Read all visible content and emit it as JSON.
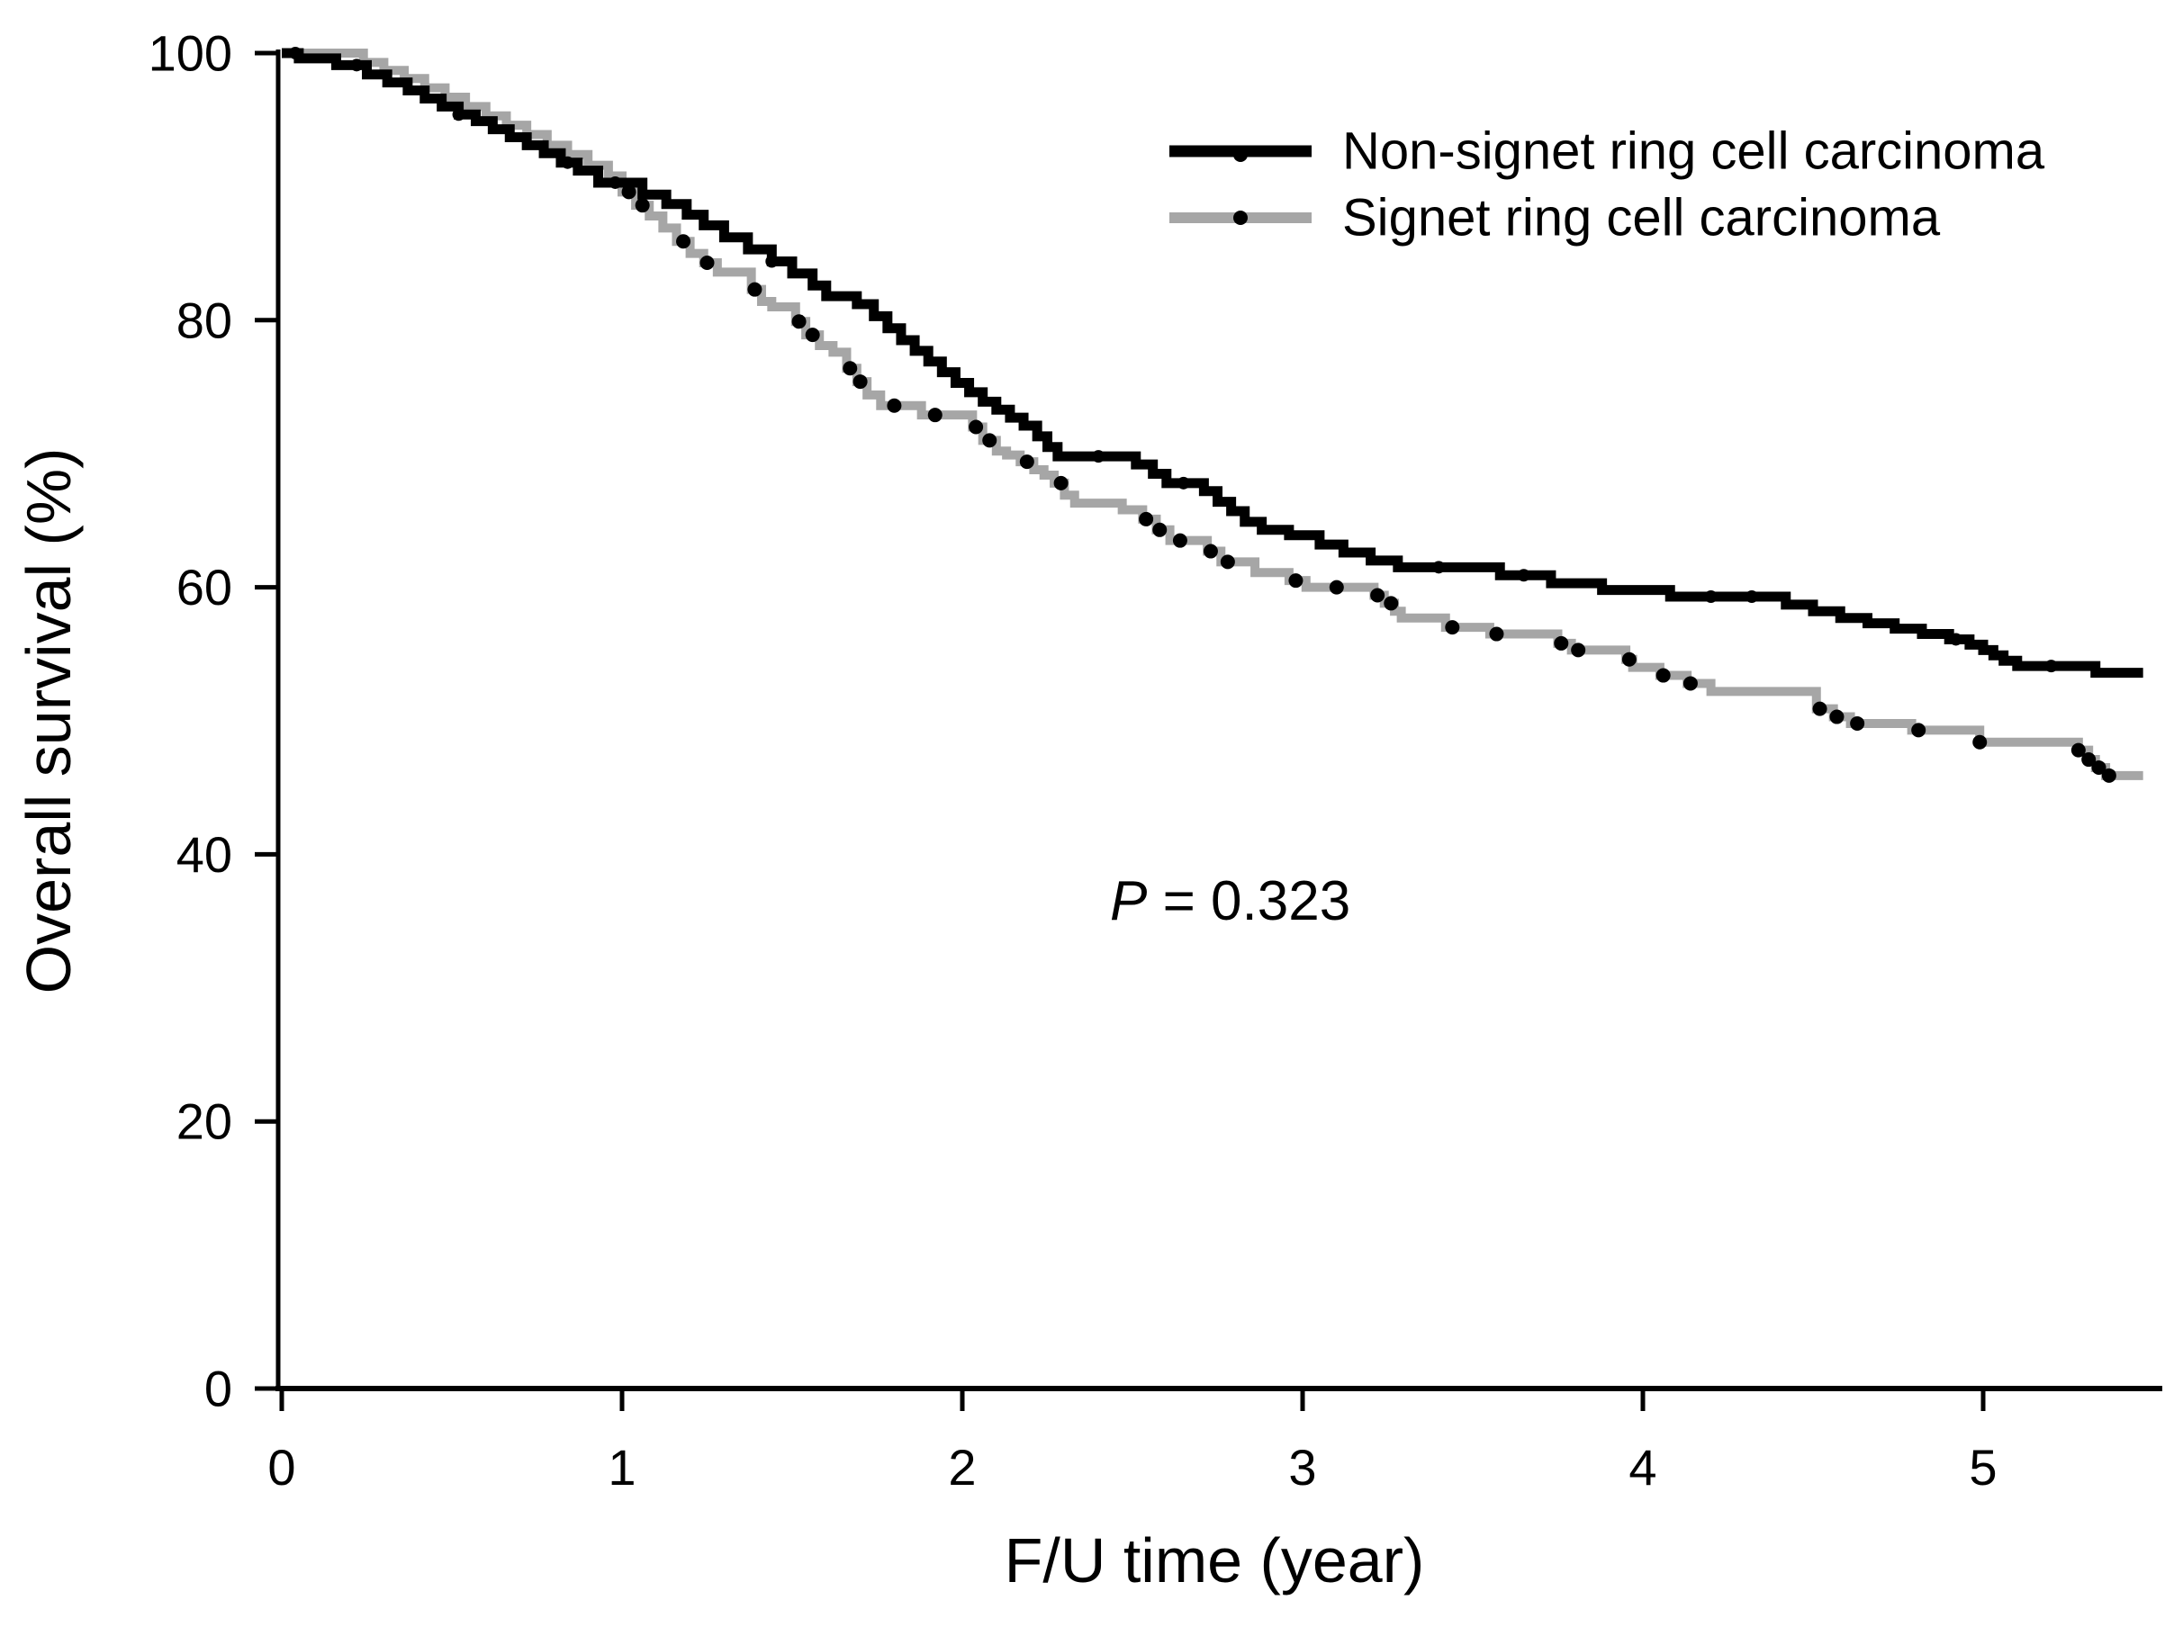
{
  "figure": {
    "background_color": "#ffffff",
    "axis_color": "#000000"
  },
  "chart_data": {
    "type": "line",
    "subtype": "kaplan-meier-step",
    "title": "",
    "xlabel": "F/U time (year)",
    "ylabel": "Overall survival (%)",
    "xlim": [
      0,
      5.5
    ],
    "ylim": [
      0,
      100
    ],
    "x_ticks": [
      0,
      1,
      2,
      3,
      4,
      5
    ],
    "y_ticks": [
      0,
      20,
      40,
      60,
      80,
      100
    ],
    "grid": false,
    "legend_position": "top-right-inside",
    "annotation": {
      "prefix_italic": "P",
      "rest": " = 0.323"
    },
    "series": [
      {
        "name": "Non-signet ring cell carcinoma",
        "color": "#000000",
        "line_width": 11,
        "censor_radius": 7,
        "censor_color": "#000000",
        "points": [
          [
            0,
            100
          ],
          [
            0.05,
            99.6
          ],
          [
            0.16,
            99.1
          ],
          [
            0.25,
            98.4
          ],
          [
            0.31,
            97.8
          ],
          [
            0.37,
            97.2
          ],
          [
            0.42,
            96.6
          ],
          [
            0.47,
            96.0
          ],
          [
            0.52,
            95.4
          ],
          [
            0.57,
            94.9
          ],
          [
            0.62,
            94.3
          ],
          [
            0.67,
            93.7
          ],
          [
            0.72,
            93.1
          ],
          [
            0.77,
            92.5
          ],
          [
            0.82,
            91.8
          ],
          [
            0.87,
            91.2
          ],
          [
            0.93,
            90.3
          ],
          [
            1.06,
            89.4
          ],
          [
            1.13,
            88.7
          ],
          [
            1.19,
            87.9
          ],
          [
            1.24,
            87.1
          ],
          [
            1.3,
            86.2
          ],
          [
            1.37,
            85.3
          ],
          [
            1.44,
            84.4
          ],
          [
            1.5,
            83.5
          ],
          [
            1.56,
            82.6
          ],
          [
            1.6,
            81.8
          ],
          [
            1.69,
            81.2
          ],
          [
            1.74,
            80.3
          ],
          [
            1.78,
            79.4
          ],
          [
            1.82,
            78.5
          ],
          [
            1.86,
            77.7
          ],
          [
            1.9,
            76.9
          ],
          [
            1.94,
            76.1
          ],
          [
            1.98,
            75.3
          ],
          [
            2.02,
            74.6
          ],
          [
            2.06,
            73.9
          ],
          [
            2.1,
            73.3
          ],
          [
            2.14,
            72.7
          ],
          [
            2.18,
            72.1
          ],
          [
            2.22,
            71.3
          ],
          [
            2.25,
            70.5
          ],
          [
            2.28,
            69.8
          ],
          [
            2.51,
            69.2
          ],
          [
            2.56,
            68.5
          ],
          [
            2.6,
            67.8
          ],
          [
            2.71,
            67.2
          ],
          [
            2.75,
            66.4
          ],
          [
            2.79,
            65.7
          ],
          [
            2.83,
            64.9
          ],
          [
            2.88,
            64.3
          ],
          [
            2.96,
            63.9
          ],
          [
            3.05,
            63.2
          ],
          [
            3.12,
            62.6
          ],
          [
            3.2,
            62.0
          ],
          [
            3.28,
            61.5
          ],
          [
            3.58,
            60.9
          ],
          [
            3.73,
            60.3
          ],
          [
            3.88,
            59.8
          ],
          [
            4.08,
            59.3
          ],
          [
            4.42,
            58.7
          ],
          [
            4.5,
            58.2
          ],
          [
            4.58,
            57.7
          ],
          [
            4.66,
            57.3
          ],
          [
            4.74,
            56.9
          ],
          [
            4.82,
            56.5
          ],
          [
            4.9,
            56.1
          ],
          [
            4.96,
            55.7
          ],
          [
            5.0,
            55.3
          ],
          [
            5.03,
            54.9
          ],
          [
            5.06,
            54.5
          ],
          [
            5.1,
            54.1
          ],
          [
            5.33,
            53.6
          ],
          [
            5.47,
            53.6
          ]
        ],
        "censor_marks": [
          [
            0.04,
            100
          ],
          [
            0.22,
            99.1
          ],
          [
            0.52,
            95.4
          ],
          [
            0.84,
            91.8
          ],
          [
            0.98,
            90.3
          ],
          [
            1.44,
            84.4
          ],
          [
            2.4,
            69.8
          ],
          [
            2.65,
            67.8
          ],
          [
            3.4,
            61.5
          ],
          [
            3.65,
            60.9
          ],
          [
            4.2,
            59.3
          ],
          [
            4.32,
            59.3
          ],
          [
            4.92,
            56.1
          ],
          [
            5.2,
            54.1
          ]
        ]
      },
      {
        "name": "Signet ring cell carcinoma",
        "color": "#a6a6a6",
        "line_width": 10,
        "censor_radius": 8,
        "censor_color": "#000000",
        "points": [
          [
            0,
            100
          ],
          [
            0.24,
            99.3
          ],
          [
            0.3,
            98.7
          ],
          [
            0.36,
            98.1
          ],
          [
            0.42,
            97.4
          ],
          [
            0.48,
            96.7
          ],
          [
            0.54,
            96.0
          ],
          [
            0.6,
            95.3
          ],
          [
            0.66,
            94.6
          ],
          [
            0.72,
            93.9
          ],
          [
            0.78,
            93.1
          ],
          [
            0.84,
            92.4
          ],
          [
            0.9,
            91.6
          ],
          [
            0.96,
            90.8
          ],
          [
            1.0,
            89.6
          ],
          [
            1.04,
            88.6
          ],
          [
            1.08,
            87.8
          ],
          [
            1.12,
            86.9
          ],
          [
            1.16,
            85.9
          ],
          [
            1.2,
            85.0
          ],
          [
            1.24,
            84.3
          ],
          [
            1.28,
            83.6
          ],
          [
            1.38,
            82.3
          ],
          [
            1.41,
            81.4
          ],
          [
            1.44,
            81.0
          ],
          [
            1.51,
            79.9
          ],
          [
            1.54,
            78.9
          ],
          [
            1.58,
            78.1
          ],
          [
            1.62,
            77.6
          ],
          [
            1.66,
            76.4
          ],
          [
            1.69,
            75.4
          ],
          [
            1.72,
            74.4
          ],
          [
            1.76,
            73.6
          ],
          [
            1.88,
            72.9
          ],
          [
            2.03,
            72.0
          ],
          [
            2.06,
            71.0
          ],
          [
            2.1,
            70.2
          ],
          [
            2.13,
            69.9
          ],
          [
            2.17,
            69.4
          ],
          [
            2.21,
            68.8
          ],
          [
            2.24,
            68.4
          ],
          [
            2.27,
            67.8
          ],
          [
            2.3,
            66.9
          ],
          [
            2.33,
            66.3
          ],
          [
            2.47,
            65.8
          ],
          [
            2.53,
            65.1
          ],
          [
            2.57,
            64.3
          ],
          [
            2.61,
            63.5
          ],
          [
            2.72,
            62.7
          ],
          [
            2.76,
            61.9
          ],
          [
            2.86,
            61.1
          ],
          [
            2.96,
            60.5
          ],
          [
            3.01,
            60.0
          ],
          [
            3.21,
            59.4
          ],
          [
            3.24,
            58.8
          ],
          [
            3.27,
            58.2
          ],
          [
            3.29,
            57.7
          ],
          [
            3.42,
            57.0
          ],
          [
            3.55,
            56.5
          ],
          [
            3.75,
            55.8
          ],
          [
            3.79,
            55.3
          ],
          [
            3.95,
            54.6
          ],
          [
            3.97,
            54.0
          ],
          [
            4.05,
            53.4
          ],
          [
            4.13,
            52.8
          ],
          [
            4.2,
            52.2
          ],
          [
            4.51,
            50.9
          ],
          [
            4.56,
            50.3
          ],
          [
            4.61,
            49.8
          ],
          [
            4.79,
            49.3
          ],
          [
            4.99,
            48.4
          ],
          [
            5.28,
            47.8
          ],
          [
            5.31,
            47.1
          ],
          [
            5.33,
            46.5
          ],
          [
            5.36,
            45.9
          ],
          [
            5.47,
            45.9
          ]
        ],
        "censor_marks": [
          [
            1.02,
            89.6
          ],
          [
            1.06,
            88.6
          ],
          [
            1.18,
            85.9
          ],
          [
            1.25,
            84.3
          ],
          [
            1.39,
            82.3
          ],
          [
            1.52,
            79.9
          ],
          [
            1.56,
            78.9
          ],
          [
            1.67,
            76.4
          ],
          [
            1.7,
            75.4
          ],
          [
            1.8,
            73.6
          ],
          [
            1.92,
            72.9
          ],
          [
            2.04,
            72.0
          ],
          [
            2.08,
            71.0
          ],
          [
            2.19,
            69.4
          ],
          [
            2.29,
            67.8
          ],
          [
            2.54,
            65.1
          ],
          [
            2.58,
            64.3
          ],
          [
            2.64,
            63.5
          ],
          [
            2.73,
            62.7
          ],
          [
            2.78,
            61.9
          ],
          [
            2.98,
            60.5
          ],
          [
            3.1,
            60.0
          ],
          [
            3.22,
            59.4
          ],
          [
            3.26,
            58.8
          ],
          [
            3.44,
            57.0
          ],
          [
            3.57,
            56.5
          ],
          [
            3.76,
            55.8
          ],
          [
            3.81,
            55.3
          ],
          [
            3.96,
            54.6
          ],
          [
            4.06,
            53.4
          ],
          [
            4.14,
            52.8
          ],
          [
            4.52,
            50.9
          ],
          [
            4.57,
            50.3
          ],
          [
            4.63,
            49.8
          ],
          [
            4.81,
            49.3
          ],
          [
            4.99,
            48.4
          ],
          [
            5.28,
            47.8
          ],
          [
            5.31,
            47.1
          ],
          [
            5.34,
            46.5
          ],
          [
            5.37,
            45.9
          ]
        ]
      }
    ]
  }
}
